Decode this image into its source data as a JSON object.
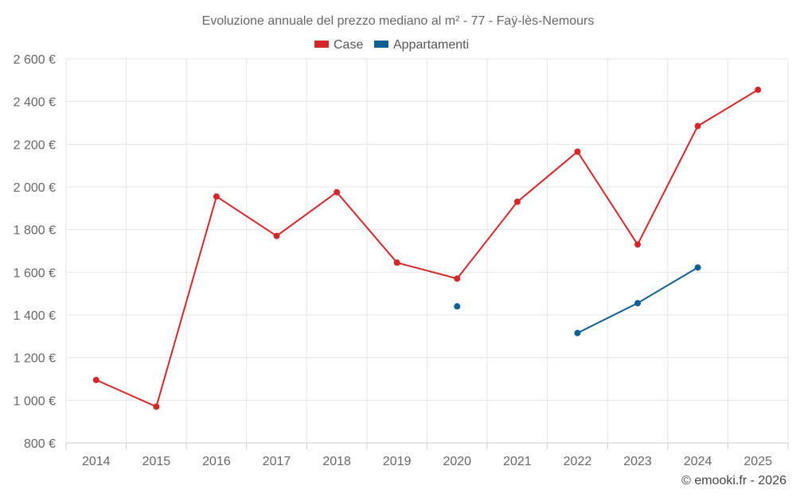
{
  "chart_data": {
    "type": "line",
    "title": "Evoluzione annuale del prezzo mediano al m² - 77 - Faÿ-lès-Nemours",
    "categories": [
      "2014",
      "2015",
      "2016",
      "2017",
      "2018",
      "2019",
      "2020",
      "2021",
      "2022",
      "2023",
      "2024",
      "2025"
    ],
    "ylim": [
      800,
      2600
    ],
    "yticks": [
      800,
      1000,
      1200,
      1400,
      1600,
      1800,
      2000,
      2200,
      2400,
      2600
    ],
    "ytick_labels": [
      "800 €",
      "1 000 €",
      "1 200 €",
      "1 400 €",
      "1 600 €",
      "1 800 €",
      "2 000 €",
      "2 200 €",
      "2 400 €",
      "2 600 €"
    ],
    "grid": true,
    "legend_position": "top-center",
    "series": [
      {
        "name": "Case",
        "color": "#d62728",
        "values": [
          1095,
          970,
          1955,
          1770,
          1975,
          1645,
          1570,
          1930,
          2165,
          1730,
          2285,
          2455
        ]
      },
      {
        "name": "Appartamenti",
        "color": "#0f6096",
        "values": [
          null,
          null,
          null,
          null,
          null,
          null,
          1440,
          null,
          1315,
          1455,
          1622,
          null
        ]
      }
    ],
    "credit": "© emooki.fr - 2026"
  }
}
